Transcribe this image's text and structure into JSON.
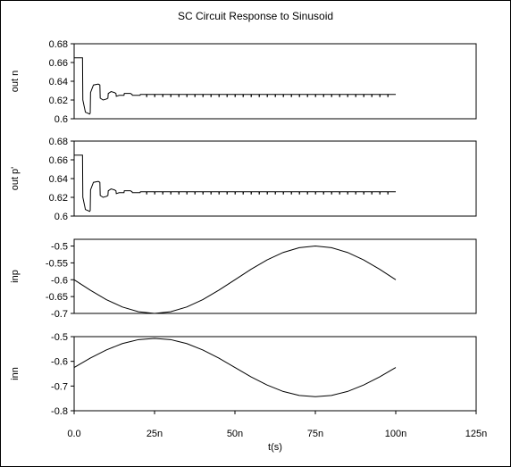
{
  "chart_data": {
    "type": "line",
    "title": "SC Circuit Response to Sinusoid",
    "xlabel": "t(s)",
    "xlim": [
      0,
      125
    ],
    "x_ticks": [
      0,
      25,
      50,
      75,
      100,
      125
    ],
    "x_tick_labels": [
      "0.0",
      "25n",
      "50n",
      "75n",
      "100n",
      "125n"
    ],
    "grid": false,
    "line_color": "#000000",
    "panels": [
      {
        "ylabel": "out n",
        "ylim": [
          0.6,
          0.68
        ],
        "y_ticks": [
          0.6,
          0.62,
          0.64,
          0.66,
          0.68
        ],
        "y_tick_labels": [
          "0.6",
          "0.62",
          "0.64",
          "0.66",
          "0.68"
        ],
        "series": [
          {
            "x": [
              0,
              2.6,
              2.7,
              3.5,
              4.2,
              4.8,
              5.0,
              5.1,
              6.0,
              7.5,
              8.0,
              8.1,
              9.0,
              10.0,
              10.5,
              10.6,
              11.5,
              12.5,
              13.0,
              13.1,
              14.0,
              15.0,
              15.5,
              15.6,
              16.5,
              17.5,
              18.0,
              18.1,
              19.0,
              20.0,
              20.5,
              20.6,
              22.0,
              100
            ],
            "y": [
              0.665,
              0.665,
              0.62,
              0.607,
              0.606,
              0.605,
              0.606,
              0.628,
              0.636,
              0.637,
              0.636,
              0.622,
              0.62,
              0.621,
              0.622,
              0.627,
              0.629,
              0.628,
              0.627,
              0.624,
              0.625,
              0.625,
              0.625,
              0.627,
              0.627,
              0.627,
              0.626,
              0.625,
              0.625,
              0.625,
              0.625,
              0.626,
              0.626,
              0.626
            ]
          }
        ]
      },
      {
        "ylabel": "out p'",
        "ylim": [
          0.6,
          0.68
        ],
        "y_ticks": [
          0.6,
          0.62,
          0.64,
          0.66,
          0.68
        ],
        "y_tick_labels": [
          "0.6",
          "0.62",
          "0.64",
          "0.66",
          "0.68"
        ],
        "series": [
          {
            "x": [
              0,
              2.6,
              2.7,
              3.5,
              4.2,
              4.8,
              5.0,
              5.1,
              6.0,
              7.5,
              8.0,
              8.1,
              9.0,
              10.0,
              10.5,
              10.6,
              11.5,
              12.5,
              13.0,
              13.1,
              14.0,
              15.0,
              15.5,
              15.6,
              16.5,
              17.5,
              18.0,
              18.1,
              19.0,
              20.0,
              20.5,
              20.6,
              22.0,
              100
            ],
            "y": [
              0.665,
              0.665,
              0.62,
              0.607,
              0.606,
              0.605,
              0.606,
              0.628,
              0.636,
              0.637,
              0.636,
              0.622,
              0.62,
              0.621,
              0.622,
              0.627,
              0.629,
              0.628,
              0.627,
              0.624,
              0.625,
              0.625,
              0.625,
              0.627,
              0.627,
              0.627,
              0.626,
              0.625,
              0.625,
              0.625,
              0.625,
              0.626,
              0.626,
              0.626
            ]
          }
        ]
      },
      {
        "ylabel": "inp",
        "ylim": [
          -0.7,
          -0.48
        ],
        "y_ticks": [
          -0.7,
          -0.65,
          -0.6,
          -0.55,
          -0.5
        ],
        "y_tick_labels": [
          "-0.7",
          "-0.65",
          "-0.6",
          "-0.55",
          "-0.5"
        ],
        "series": [
          {
            "x": [
              0,
              5,
              10,
              15,
              20,
              25,
              30,
              35,
              40,
              45,
              50,
              55,
              60,
              65,
              70,
              75,
              80,
              85,
              90,
              95,
              100
            ],
            "y": [
              -0.6,
              -0.631,
              -0.659,
              -0.681,
              -0.695,
              -0.7,
              -0.695,
              -0.681,
              -0.659,
              -0.631,
              -0.6,
              -0.569,
              -0.541,
              -0.519,
              -0.505,
              -0.5,
              -0.505,
              -0.519,
              -0.541,
              -0.569,
              -0.6
            ]
          }
        ]
      },
      {
        "ylabel": "inn",
        "ylim": [
          -0.8,
          -0.5
        ],
        "y_ticks": [
          -0.8,
          -0.7,
          -0.6,
          -0.5
        ],
        "y_tick_labels": [
          "-0.8",
          "-0.7",
          "-0.6",
          "-0.5"
        ],
        "series": [
          {
            "x": [
              0,
              5,
              10,
              15,
              20,
              25,
              30,
              35,
              40,
              45,
              50,
              55,
              60,
              65,
              70,
              75,
              80,
              85,
              90,
              95,
              100
            ],
            "y": [
              -0.625,
              -0.587,
              -0.554,
              -0.528,
              -0.512,
              -0.507,
              -0.512,
              -0.528,
              -0.554,
              -0.587,
              -0.625,
              -0.663,
              -0.696,
              -0.722,
              -0.738,
              -0.743,
              -0.738,
              -0.722,
              -0.696,
              -0.663,
              -0.625
            ]
          }
        ]
      }
    ]
  }
}
